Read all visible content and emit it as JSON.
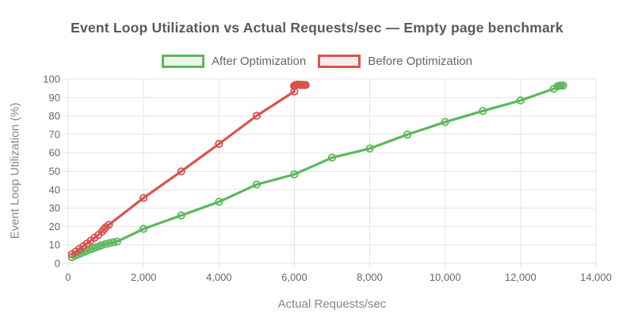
{
  "chart": {
    "title": "Event Loop Utilization vs Actual Requests/sec — Empty page benchmark"
  },
  "chart_data": {
    "type": "line",
    "title": "Event Loop Utilization vs Actual Requests/sec — Empty page benchmark",
    "xlabel": "Actual Requests/sec",
    "ylabel": "Event Loop Utilization (%)",
    "xlim": [
      0,
      14000
    ],
    "ylim": [
      0,
      100
    ],
    "grid": true,
    "legend_position": "top",
    "colors": {
      "grid": "#e5e5e5",
      "tick_label": "#666666",
      "title": "#595959",
      "axis_title": "#878787",
      "legend_label": "#666666"
    },
    "x_ticks": [
      {
        "value": 0,
        "label": "0"
      },
      {
        "value": 2000,
        "label": "2,000"
      },
      {
        "value": 4000,
        "label": "4,000"
      },
      {
        "value": 6000,
        "label": "6,000"
      },
      {
        "value": 8000,
        "label": "8,000"
      },
      {
        "value": 10000,
        "label": "10,000"
      },
      {
        "value": 12000,
        "label": "12,000"
      },
      {
        "value": 14000,
        "label": "14,000"
      }
    ],
    "y_ticks": [
      {
        "value": 0,
        "label": "0"
      },
      {
        "value": 10,
        "label": "10"
      },
      {
        "value": 20,
        "label": "20"
      },
      {
        "value": 30,
        "label": "30"
      },
      {
        "value": 40,
        "label": "40"
      },
      {
        "value": 50,
        "label": "50"
      },
      {
        "value": 60,
        "label": "60"
      },
      {
        "value": 70,
        "label": "70"
      },
      {
        "value": 80,
        "label": "80"
      },
      {
        "value": 90,
        "label": "90"
      },
      {
        "value": 100,
        "label": "100"
      }
    ],
    "series": [
      {
        "id": "after-optimization",
        "name": "After Optimization",
        "color": "#5cb85c",
        "fill": "#eaf6ec",
        "points": [
          [
            100,
            3.4
          ],
          [
            180,
            4.1
          ],
          [
            260,
            4.8
          ],
          [
            340,
            5.5
          ],
          [
            420,
            6.2
          ],
          [
            500,
            6.9
          ],
          [
            580,
            7.5
          ],
          [
            660,
            8.1
          ],
          [
            740,
            8.7
          ],
          [
            820,
            9.3
          ],
          [
            900,
            9.9
          ],
          [
            1000,
            10.5
          ],
          [
            1100,
            11.0
          ],
          [
            1200,
            11.4
          ],
          [
            1300,
            11.8
          ],
          [
            2000,
            18.7
          ],
          [
            3000,
            26.0
          ],
          [
            4000,
            33.4
          ],
          [
            5000,
            42.8
          ],
          [
            6000,
            48.3
          ],
          [
            7000,
            57.4
          ],
          [
            8000,
            62.3
          ],
          [
            9000,
            69.9
          ],
          [
            10000,
            76.7
          ],
          [
            11000,
            82.7
          ],
          [
            12000,
            88.4
          ],
          [
            12880,
            94.7
          ],
          [
            12980,
            96.1
          ],
          [
            13030,
            96.4
          ],
          [
            13080,
            96.5
          ],
          [
            13130,
            96.5
          ]
        ]
      },
      {
        "id": "before-optimization",
        "name": "Before Optimization",
        "color": "#d9534f",
        "fill": "#fbebeb",
        "points": [
          [
            100,
            5.0
          ],
          [
            200,
            6.4
          ],
          [
            300,
            7.9
          ],
          [
            400,
            9.3
          ],
          [
            500,
            10.8
          ],
          [
            600,
            12.3
          ],
          [
            700,
            13.9
          ],
          [
            800,
            15.4
          ],
          [
            900,
            17.2
          ],
          [
            950,
            18.5
          ],
          [
            1000,
            19.6
          ],
          [
            1080,
            20.9
          ],
          [
            2000,
            35.5
          ],
          [
            3000,
            49.9
          ],
          [
            4000,
            64.8
          ],
          [
            5000,
            80.1
          ],
          [
            6000,
            93.3
          ],
          [
            5990,
            96.3
          ],
          [
            6015,
            96.6
          ],
          [
            6040,
            96.8
          ],
          [
            6065,
            96.9
          ],
          [
            6090,
            97.0
          ],
          [
            6115,
            97.0
          ],
          [
            6140,
            96.9
          ],
          [
            6165,
            96.9
          ],
          [
            6190,
            96.8
          ],
          [
            6215,
            96.8
          ],
          [
            6240,
            96.9
          ],
          [
            6270,
            96.8
          ],
          [
            6300,
            96.8
          ]
        ]
      }
    ]
  }
}
